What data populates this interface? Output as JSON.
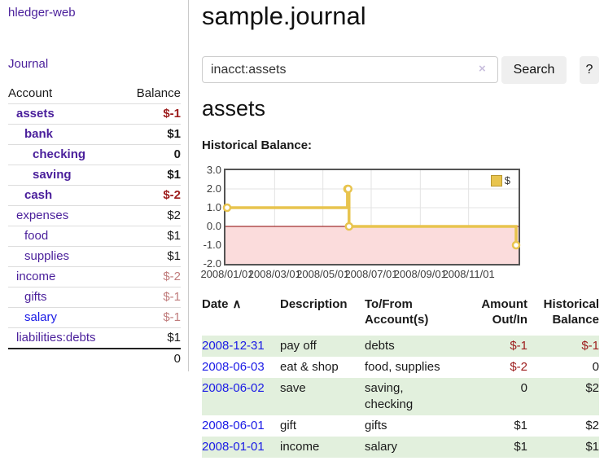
{
  "sidebar": {
    "app_title": "hledger-web",
    "nav_journal": "Journal",
    "accounts": {
      "header_account": "Account",
      "header_balance": "Balance",
      "rows": [
        {
          "name": "assets",
          "balance": "$-1",
          "balance_class": "neg"
        },
        {
          "name": "bank",
          "balance": "$1",
          "balance_class": ""
        },
        {
          "name": "checking",
          "balance": "0",
          "balance_class": ""
        },
        {
          "name": "saving",
          "balance": "$1",
          "balance_class": ""
        },
        {
          "name": "cash",
          "balance": "$-2",
          "balance_class": "neg"
        },
        {
          "name": "expenses",
          "balance": "$2",
          "balance_class": ""
        },
        {
          "name": "food",
          "balance": "$1",
          "balance_class": ""
        },
        {
          "name": "supplies",
          "balance": "$1",
          "balance_class": ""
        },
        {
          "name": "income",
          "balance": "$-2",
          "balance_class": "negsoft"
        },
        {
          "name": "gifts",
          "balance": "$-1",
          "balance_class": "negsoft"
        },
        {
          "name": "salary",
          "balance": "$-1",
          "balance_class": "negsoft"
        },
        {
          "name": "liabilities:debts",
          "balance": "$1",
          "balance_class": ""
        }
      ],
      "total": "0"
    }
  },
  "main": {
    "title": "sample.journal",
    "search": {
      "value": "inacct:assets",
      "clear_icon": "×",
      "search_label": "Search",
      "help_label": "?"
    },
    "account_heading": "assets",
    "chart_label": "Historical Balance:"
  },
  "chart_data": {
    "type": "line",
    "title": "Historical Balance:",
    "steps": true,
    "series": [
      {
        "name": "$",
        "color": "#E8C44E",
        "points": [
          [
            "2008-01-01",
            1
          ],
          [
            "2008-06-01",
            2
          ],
          [
            "2008-06-02",
            2
          ],
          [
            "2008-06-03",
            0
          ],
          [
            "2008-12-31",
            -1
          ]
        ]
      }
    ],
    "x_range": [
      "2008-01-01",
      "2008-12-31"
    ],
    "ylim": [
      -2,
      3
    ],
    "ytick_values": [
      3,
      2,
      1,
      0,
      -1,
      -2
    ],
    "ytick_labels": [
      "3.0",
      "2.0",
      "1.0",
      "0.0",
      "-1.0",
      "-2.0"
    ],
    "xtick_dates": [
      "2008-01-01",
      "2008-03-01",
      "2008-05-01",
      "2008-07-01",
      "2008-09-01",
      "2008-11-01"
    ],
    "xtick_labels": [
      "2008/01/01",
      "2008/03/01",
      "2008/05/01",
      "2008/07/01",
      "2008/09/01",
      "2008/11/01"
    ],
    "legend": {
      "label": "$",
      "position": "top-right",
      "swatch_color": "#E8C44E"
    },
    "negative_area_color": "#FBDCDC",
    "zero_line_color": "#8B0000",
    "grid": true
  },
  "register": {
    "headers": {
      "date": "Date",
      "sort_icon": "∧",
      "description": "Description",
      "accounts": "To/From Account(s)",
      "amount": "Amount Out/In",
      "balance": "Historical Balance"
    },
    "rows": [
      {
        "date": "2008-12-31",
        "description": "pay off",
        "accounts": "debts",
        "amount": "$-1",
        "amount_class": "neg",
        "balance": "$-1",
        "balance_class": "neg"
      },
      {
        "date": "2008-06-03",
        "description": "eat & shop",
        "accounts": "food, supplies",
        "amount": "$-2",
        "amount_class": "neg",
        "balance": "0",
        "balance_class": ""
      },
      {
        "date": "2008-06-02",
        "description": "save",
        "accounts": "saving, checking",
        "amount": "0",
        "amount_class": "",
        "balance": "$2",
        "balance_class": ""
      },
      {
        "date": "2008-06-01",
        "description": "gift",
        "accounts": "gifts",
        "amount": "$1",
        "amount_class": "",
        "balance": "$2",
        "balance_class": ""
      },
      {
        "date": "2008-01-01",
        "description": "income",
        "accounts": "salary",
        "amount": "$1",
        "amount_class": "",
        "balance": "$1",
        "balance_class": ""
      }
    ]
  }
}
